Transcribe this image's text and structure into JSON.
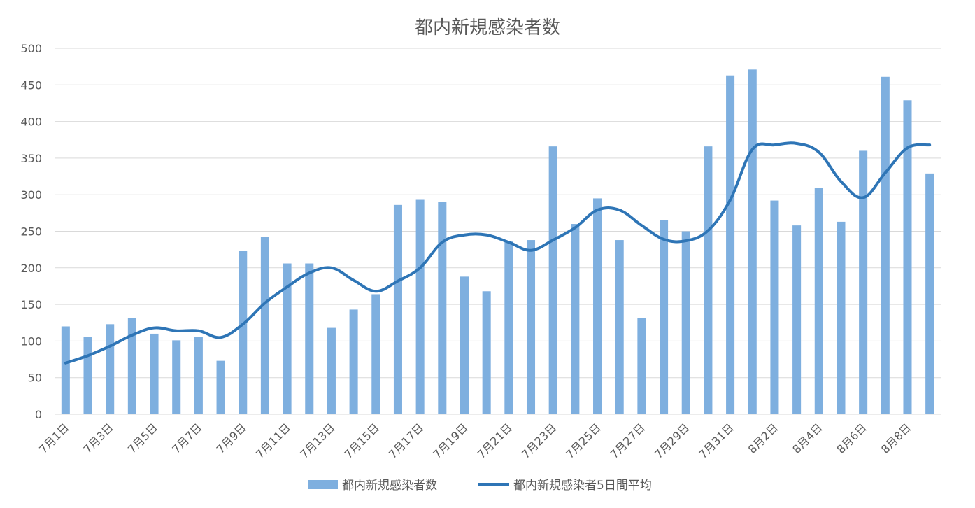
{
  "chart_data": {
    "type": "bar",
    "title": "都内新規感染者数",
    "categories": [
      "7月1日",
      "7月2日",
      "7月3日",
      "7月4日",
      "7月5日",
      "7月6日",
      "7月7日",
      "7月8日",
      "7月9日",
      "7月10日",
      "7月11日",
      "7月12日",
      "7月13日",
      "7月14日",
      "7月15日",
      "7月16日",
      "7月17日",
      "7月18日",
      "7月19日",
      "7月20日",
      "7月21日",
      "7月22日",
      "7月23日",
      "7月24日",
      "7月25日",
      "7月26日",
      "7月27日",
      "7月28日",
      "7月29日",
      "7月30日",
      "7月31日",
      "8月1日",
      "8月2日",
      "8月3日",
      "8月4日",
      "8月5日",
      "8月6日",
      "8月7日",
      "8月8日",
      "8月9日"
    ],
    "tick_labels": [
      "7月1日",
      "7月3日",
      "7月5日",
      "7月7日",
      "7月9日",
      "7月11日",
      "7月13日",
      "7月15日",
      "7月17日",
      "7月19日",
      "7月21日",
      "7月23日",
      "7月25日",
      "7月27日",
      "7月29日",
      "7月31日",
      "8月2日",
      "8月4日",
      "8月6日",
      "8月8日"
    ],
    "series": [
      {
        "name": "都内新規感染者数",
        "type": "bar",
        "color": "#7eafdf",
        "values": [
          120,
          106,
          123,
          131,
          110,
          101,
          106,
          73,
          223,
          242,
          206,
          206,
          118,
          143,
          164,
          286,
          293,
          290,
          188,
          168,
          236,
          238,
          366,
          260,
          295,
          238,
          131,
          265,
          250,
          366,
          463,
          471,
          292,
          258,
          309,
          263,
          360,
          461,
          429,
          329
        ]
      },
      {
        "name": "都内新規感染者5日間平均",
        "type": "line",
        "color": "#2e75b6",
        "values": [
          70,
          80,
          93,
          108,
          118,
          114,
          114,
          105,
          123,
          152,
          174,
          193,
          200,
          183,
          168,
          182,
          200,
          235,
          245,
          245,
          235,
          224,
          238,
          255,
          279,
          279,
          258,
          239,
          237,
          251,
          293,
          362,
          368,
          370,
          358,
          318,
          296,
          330,
          364,
          368
        ]
      }
    ],
    "ylim": [
      0,
      500
    ],
    "yticks": [
      0,
      50,
      100,
      150,
      200,
      250,
      300,
      350,
      400,
      450,
      500
    ],
    "grid": true,
    "legend_position": "bottom",
    "xlabel": "",
    "ylabel": ""
  }
}
